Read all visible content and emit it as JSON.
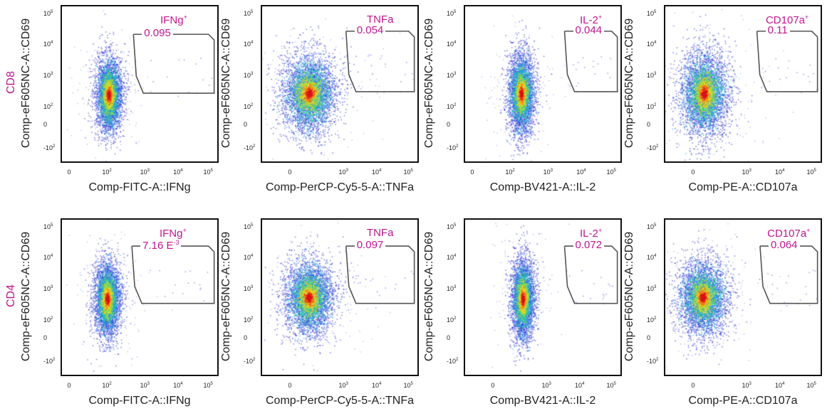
{
  "row_labels": [
    "CD8",
    "CD4"
  ],
  "chart_data": [
    {
      "type": "scatter",
      "row": "CD8",
      "ylabel": "Comp-eF605NC-A::CD69",
      "xlabel": "Comp-FITC-A::IFNg",
      "x_ticks": [
        "0",
        "10^2",
        "10^3",
        "10^4",
        "10^5"
      ],
      "y_ticks": [
        "10^5",
        "10^4",
        "10^3",
        "10^2",
        "0",
        "-10^2"
      ],
      "gate": {
        "name": "IFNg",
        "superscript": "+",
        "value": "0.095"
      }
    },
    {
      "type": "scatter",
      "row": "CD8",
      "ylabel": "Comp-eF605NC-A::CD69",
      "xlabel": "Comp-PerCP-Cy5-5-A::TNFa",
      "x_ticks": [
        "0",
        "10^3",
        "10^4",
        "10^5"
      ],
      "y_ticks": [
        "10^5",
        "10^4",
        "10^3",
        "10^2",
        "0",
        "-10^2"
      ],
      "gate": {
        "name": "TNFa",
        "superscript": "",
        "value": "0.054"
      }
    },
    {
      "type": "scatter",
      "row": "CD8",
      "ylabel": "Comp-eF605NC-A::CD69",
      "xlabel": "Comp-BV421-A::IL-2",
      "x_ticks": [
        "0",
        "10^2",
        "10^3",
        "10^4",
        "10^5"
      ],
      "y_ticks": [
        "10^5",
        "10^4",
        "10^3",
        "10^2",
        "0",
        "-10^2"
      ],
      "gate": {
        "name": "IL-2",
        "superscript": "+",
        "value": "0.044"
      }
    },
    {
      "type": "scatter",
      "row": "CD8",
      "ylabel": "Comp-eF605NC-A::CD69",
      "xlabel": "Comp-PE-A::CD107a",
      "x_ticks": [
        "0",
        "10^3",
        "10^4",
        "10^5"
      ],
      "y_ticks": [
        "10^5",
        "10^4",
        "10^3",
        "10^2",
        "0",
        "-10^2"
      ],
      "gate": {
        "name": "CD107a",
        "superscript": "+",
        "value": "0.11"
      }
    },
    {
      "type": "scatter",
      "row": "CD4",
      "ylabel": "Comp-eF605NC-A::CD69",
      "xlabel": "Comp-FITC-A::IFNg",
      "x_ticks": [
        "0",
        "10^2",
        "10^3",
        "10^4",
        "10^5"
      ],
      "y_ticks": [
        "10^5",
        "10^4",
        "10^3",
        "10^2",
        "0",
        "-10^2"
      ],
      "gate": {
        "name": "IFNg",
        "superscript": "+",
        "value": "7.16 E",
        "value_superscript": "-3"
      }
    },
    {
      "type": "scatter",
      "row": "CD4",
      "ylabel": "Comp-eF605NC-A::CD69",
      "xlabel": "Comp-PerCP-Cy5-5-A::TNFa",
      "x_ticks": [
        "0",
        "10^3",
        "10^4",
        "10^5"
      ],
      "y_ticks": [
        "10^5",
        "10^4",
        "10^3",
        "10^2",
        "0",
        "-10^2"
      ],
      "gate": {
        "name": "TNFa",
        "superscript": "",
        "value": "0.097"
      }
    },
    {
      "type": "scatter",
      "row": "CD4",
      "ylabel": "Comp-eF605NC-A::CD69",
      "xlabel": "Comp-BV421-A::IL-2",
      "x_ticks": [
        "0",
        "10^3",
        "10^4",
        "10^5"
      ],
      "y_ticks": [
        "10^5",
        "10^4",
        "10^3",
        "10^2",
        "0",
        "-10^2"
      ],
      "gate": {
        "name": "IL-2",
        "superscript": "+",
        "value": "0.072"
      }
    },
    {
      "type": "scatter",
      "row": "CD4",
      "ylabel": "Comp-eF605NC-A::CD69",
      "xlabel": "Comp-PE-A::CD107a",
      "x_ticks": [
        "0",
        "10^3",
        "10^4",
        "10^5"
      ],
      "y_ticks": [
        "10^5",
        "10^4",
        "10^3",
        "10^2",
        "0",
        "-10^2"
      ],
      "gate": {
        "name": "CD107a",
        "superscript": "+",
        "value": "0.064"
      }
    }
  ],
  "colors": {
    "gate_label": "#c0168f",
    "density_scale": [
      "#2b2bd6",
      "#1fa9e0",
      "#2fd1a0",
      "#b5e02a",
      "#f7d21e",
      "#f26a1b",
      "#d8141a"
    ]
  }
}
